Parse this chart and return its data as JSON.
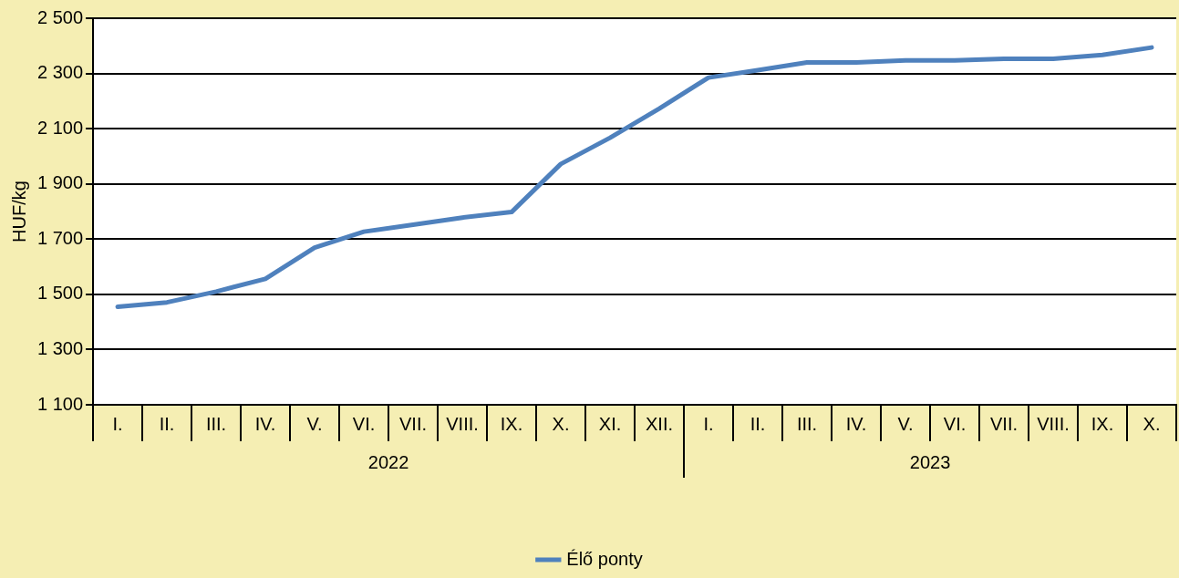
{
  "chart_data": {
    "type": "line",
    "ylabel": "HUF/kg",
    "categories": [
      "I.",
      "II.",
      "III.",
      "IV.",
      "V.",
      "VI.",
      "VII.",
      "VIII.",
      "IX.",
      "X.",
      "XI.",
      "XII.",
      "I.",
      "II.",
      "III.",
      "IV.",
      "V.",
      "VI.",
      "VII.",
      "VIII.",
      "IX.",
      "X."
    ],
    "series": [
      {
        "name": "Élő ponty",
        "color": "#4f81bd",
        "values": [
          1455,
          1471,
          1510,
          1556,
          1669,
          1727,
          1752,
          1778,
          1798,
          1972,
          2067,
          2173,
          2285,
          2312,
          2340,
          2340,
          2347,
          2347,
          2353,
          2353,
          2367,
          2394
        ]
      }
    ],
    "annotations": [
      "2022",
      "2023"
    ],
    "ylim": [
      1100,
      2500
    ],
    "yticks": [
      {
        "value": 1100,
        "label": "1 100"
      },
      {
        "value": 1300,
        "label": "1 300"
      },
      {
        "value": 1500,
        "label": "1 500"
      },
      {
        "value": 1700,
        "label": "1 700"
      },
      {
        "value": 1900,
        "label": "1 900"
      },
      {
        "value": 2100,
        "label": "2 100"
      },
      {
        "value": 2300,
        "label": "2 300"
      },
      {
        "value": 2500,
        "label": "2 500"
      }
    ],
    "grid": "y",
    "legend": "bottom",
    "marker": "none",
    "line_style": "solid"
  }
}
